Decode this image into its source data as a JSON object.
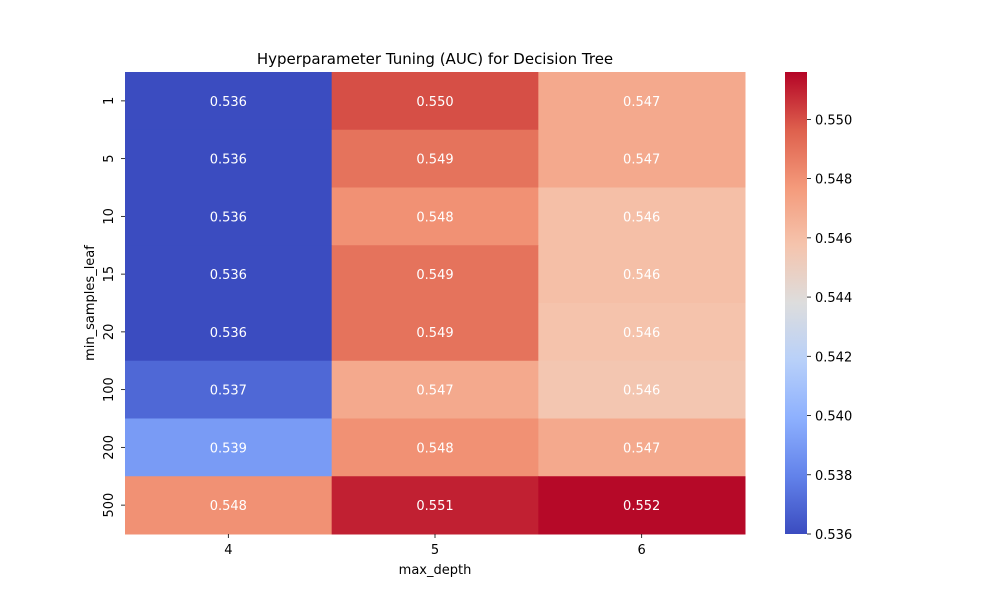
{
  "chart_data": {
    "type": "heatmap",
    "title": "Hyperparameter Tuning (AUC) for Decision Tree",
    "xlabel": "max_depth",
    "ylabel": "min_samples_leaf",
    "x_categories": [
      "4",
      "5",
      "6"
    ],
    "y_categories": [
      "1",
      "5",
      "10",
      "15",
      "20",
      "100",
      "200",
      "500"
    ],
    "values": [
      [
        0.536,
        0.55,
        0.547
      ],
      [
        0.536,
        0.549,
        0.547
      ],
      [
        0.536,
        0.548,
        0.546
      ],
      [
        0.536,
        0.549,
        0.546
      ],
      [
        0.536,
        0.549,
        0.5458
      ],
      [
        0.537,
        0.547,
        0.5456
      ],
      [
        0.539,
        0.548,
        0.547
      ],
      [
        0.548,
        0.551,
        0.5515
      ]
    ],
    "cell_labels": [
      [
        "0.536",
        "0.550",
        "0.547"
      ],
      [
        "0.536",
        "0.549",
        "0.547"
      ],
      [
        "0.536",
        "0.548",
        "0.546"
      ],
      [
        "0.536",
        "0.549",
        "0.546"
      ],
      [
        "0.536",
        "0.549",
        "0.546"
      ],
      [
        "0.537",
        "0.547",
        "0.546"
      ],
      [
        "0.539",
        "0.548",
        "0.547"
      ],
      [
        "0.548",
        "0.551",
        "0.552"
      ]
    ],
    "colormap": "coolwarm",
    "vmin": 0.536,
    "vmax": 0.5516,
    "colorbar_ticks": [
      "0.536",
      "0.538",
      "0.540",
      "0.542",
      "0.544",
      "0.546",
      "0.548",
      "0.550"
    ],
    "colorbar_tick_values": [
      0.536,
      0.538,
      0.54,
      0.542,
      0.544,
      0.546,
      0.548,
      0.55
    ]
  }
}
